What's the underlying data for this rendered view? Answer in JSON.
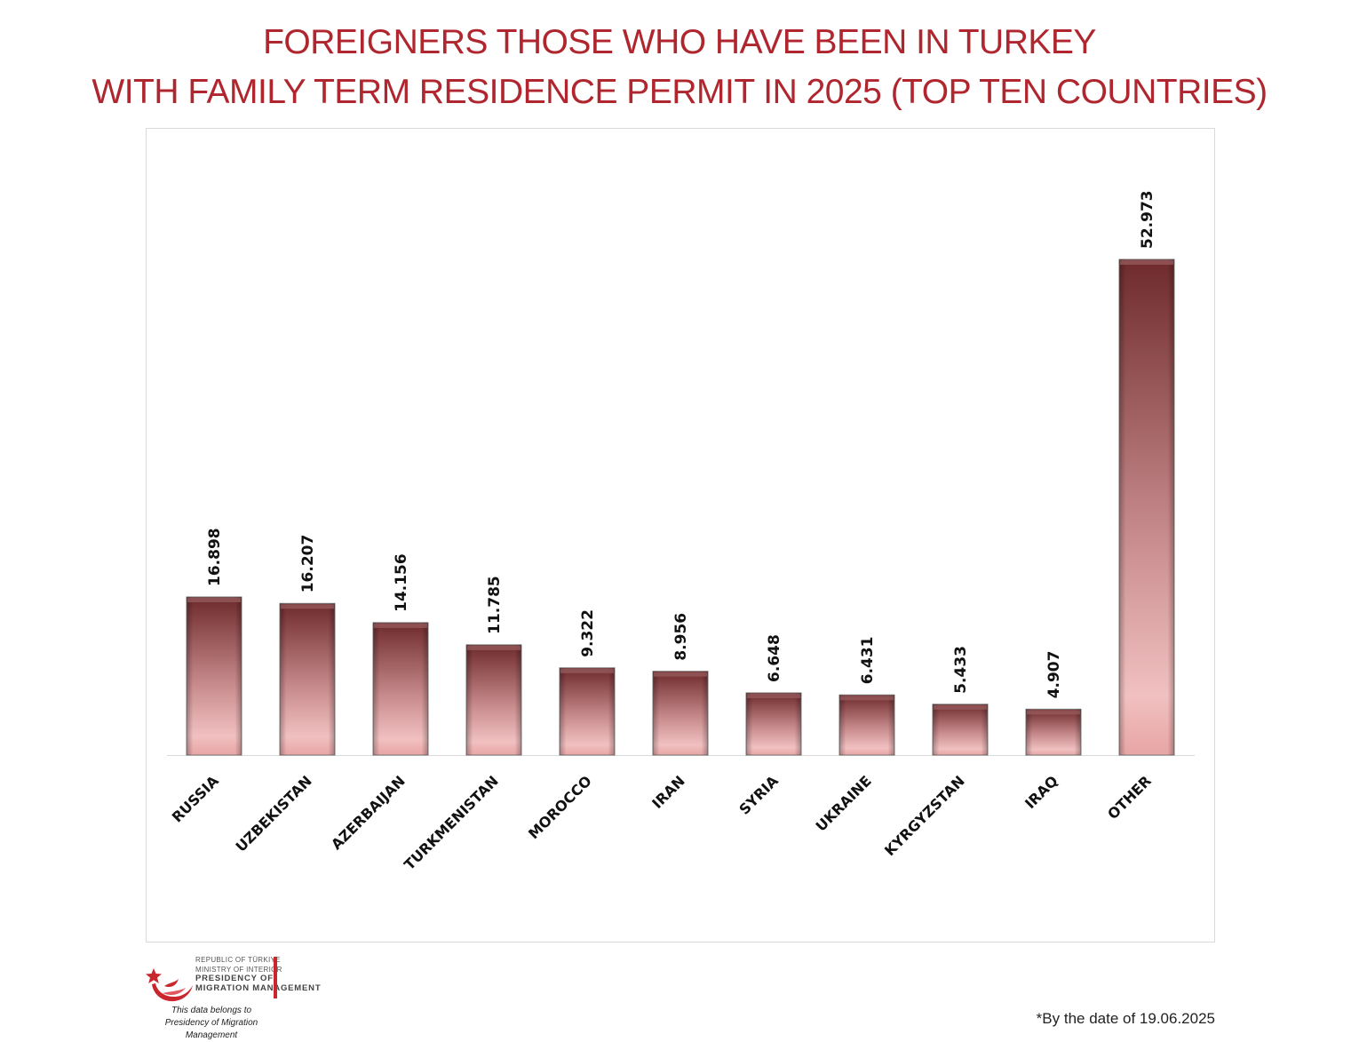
{
  "title": {
    "line1": "FOREIGNERS THOSE WHO HAVE BEEN IN TURKEY",
    "line2": "WITH FAMILY TERM RESIDENCE PERMIT IN 2025 (TOP TEN COUNTRIES)"
  },
  "colors": {
    "title": "#b0262e",
    "bar_top": "#6e2a2c",
    "bar_bottom": "#f0b8b8",
    "logo_red": "#c9262e"
  },
  "chart_data": {
    "type": "bar",
    "categories": [
      "RUSSIA",
      "UZBEKISTAN",
      "AZERBAIJAN",
      "TURKMENISTAN",
      "MOROCCO",
      "IRAN",
      "SYRIA",
      "UKRAINE",
      "KYRGYZSTAN",
      "IRAQ",
      "OTHER"
    ],
    "values": [
      16898,
      16207,
      14156,
      11785,
      9322,
      8956,
      6648,
      6431,
      5433,
      4907,
      52973
    ],
    "value_labels": [
      "16.898",
      "16.207",
      "14.156",
      "11.785",
      "9.322",
      "8.956",
      "6.648",
      "6.431",
      "5.433",
      "4.907",
      "52.973"
    ],
    "ylim": [
      0,
      64000
    ],
    "grid": false,
    "legend": "none"
  },
  "footer": {
    "org_lines": [
      "REPUBLIC OF TÜRKIYE",
      "MINISTRY OF INTERIOR",
      "PRESIDENCY OF",
      "MIGRATION MANAGEMENT"
    ],
    "belongs_lines": [
      "This data belongs to",
      "Presidency of Migration Management"
    ],
    "date_note": "*By the date of 19.06.2025"
  },
  "icons": {
    "logo": "crescent-star-logo-icon"
  }
}
